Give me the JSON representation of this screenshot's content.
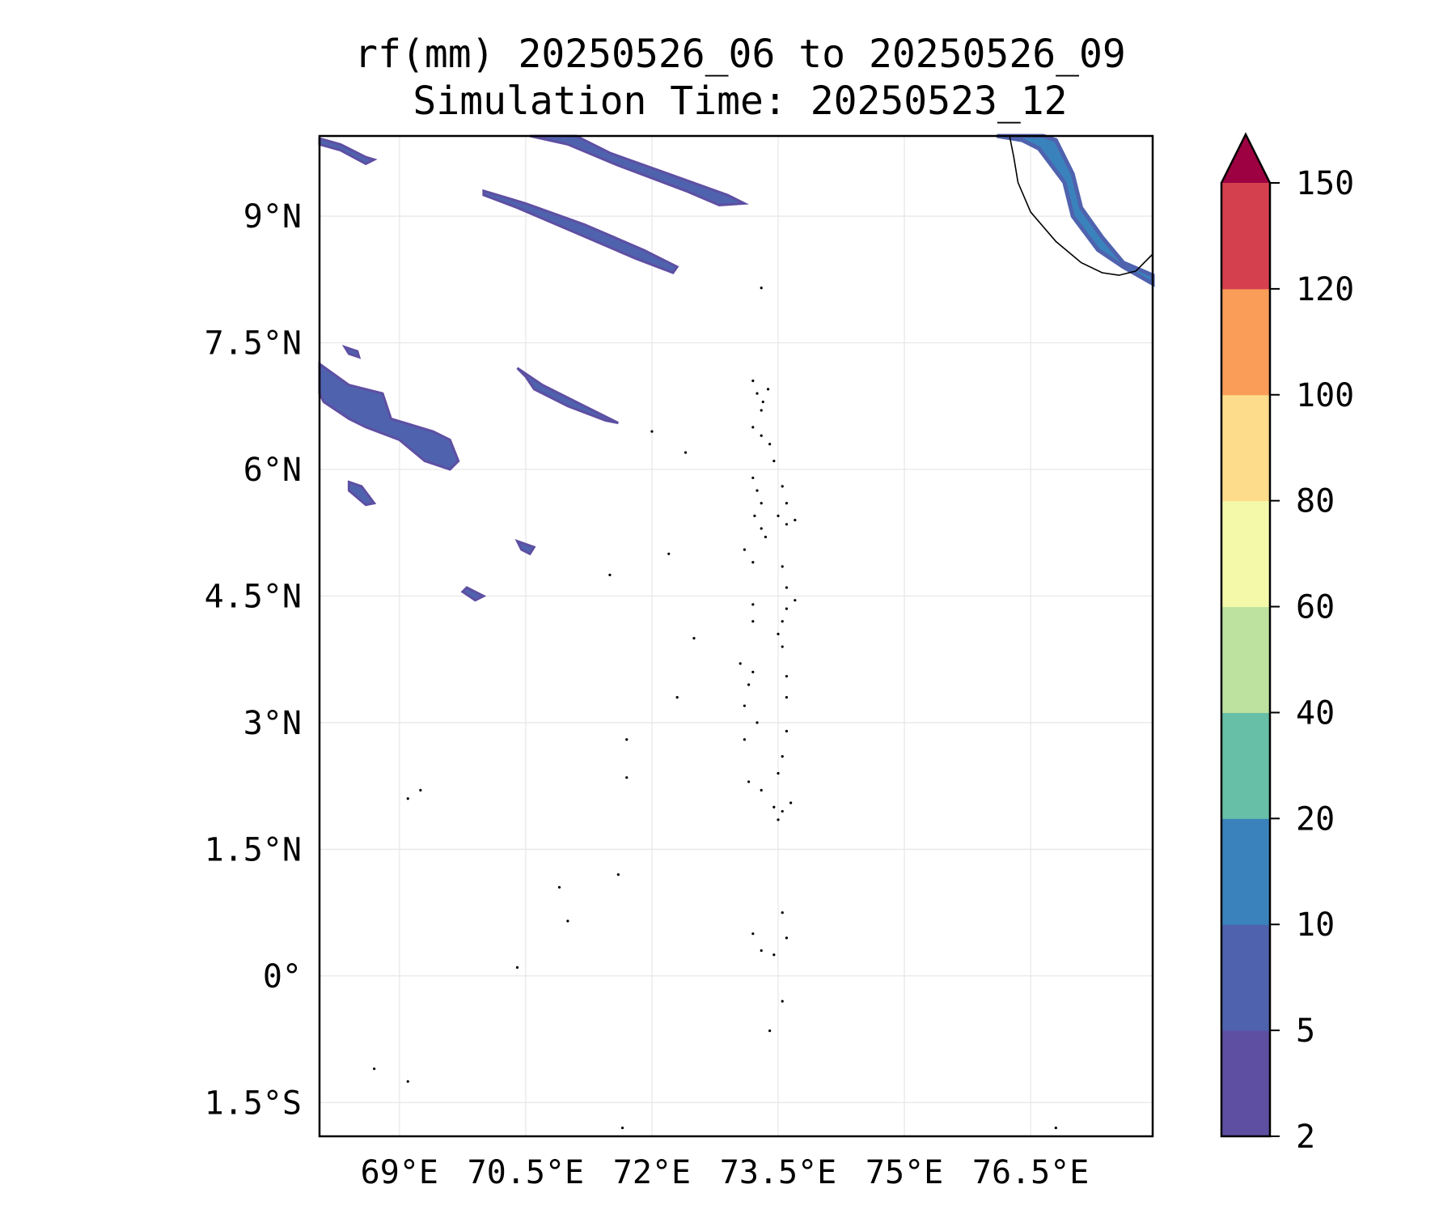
{
  "title_line1": "rf(mm) 20250526_06 to 20250526_09",
  "title_line2": "Simulation Time: 20250523_12",
  "map": {
    "lon_range": [
      68.05,
      77.95
    ],
    "lat_range": [
      -1.9,
      9.95
    ],
    "x_ticks": [
      {
        "value": 69,
        "label": "69°E"
      },
      {
        "value": 70.5,
        "label": "70.5°E"
      },
      {
        "value": 72,
        "label": "72°E"
      },
      {
        "value": 73.5,
        "label": "73.5°E"
      },
      {
        "value": 75,
        "label": "75°E"
      },
      {
        "value": 76.5,
        "label": "76.5°E"
      }
    ],
    "y_ticks": [
      {
        "value": 9,
        "label": "9°N"
      },
      {
        "value": 7.5,
        "label": "7.5°N"
      },
      {
        "value": 6,
        "label": "6°N"
      },
      {
        "value": 4.5,
        "label": "4.5°N"
      },
      {
        "value": 3,
        "label": "3°N"
      },
      {
        "value": 1.5,
        "label": "1.5°N"
      },
      {
        "value": 0,
        "label": "0°"
      },
      {
        "value": -1.5,
        "label": "1.5°S"
      }
    ],
    "gridlines": true,
    "rain_bands": [
      {
        "level": 1,
        "points": [
          [
            68.05,
            9.92
          ],
          [
            68.3,
            9.85
          ],
          [
            68.6,
            9.7
          ],
          [
            68.7,
            9.67
          ],
          [
            68.6,
            9.62
          ],
          [
            68.3,
            9.78
          ],
          [
            68.05,
            9.85
          ]
        ]
      },
      {
        "level": 1,
        "points": [
          [
            70.55,
            9.95
          ],
          [
            71.0,
            9.85
          ],
          [
            71.6,
            9.6
          ],
          [
            72.4,
            9.3
          ],
          [
            72.8,
            9.13
          ],
          [
            73.1,
            9.15
          ],
          [
            72.9,
            9.25
          ],
          [
            72.2,
            9.5
          ],
          [
            71.5,
            9.75
          ],
          [
            71.1,
            9.95
          ]
        ]
      },
      {
        "level": 1,
        "points": [
          [
            70.0,
            9.3
          ],
          [
            70.5,
            9.15
          ],
          [
            71.2,
            8.9
          ],
          [
            71.9,
            8.6
          ],
          [
            72.3,
            8.4
          ],
          [
            72.25,
            8.33
          ],
          [
            71.8,
            8.5
          ],
          [
            71.1,
            8.8
          ],
          [
            70.4,
            9.1
          ],
          [
            70.0,
            9.25
          ]
        ]
      },
      {
        "level": 1,
        "points": [
          [
            68.05,
            7.25
          ],
          [
            68.4,
            7.0
          ],
          [
            68.8,
            6.9
          ],
          [
            68.9,
            6.6
          ],
          [
            69.4,
            6.45
          ],
          [
            69.6,
            6.35
          ],
          [
            69.7,
            6.1
          ],
          [
            69.6,
            6.0
          ],
          [
            69.3,
            6.1
          ],
          [
            69.0,
            6.35
          ],
          [
            68.6,
            6.5
          ],
          [
            68.4,
            6.6
          ],
          [
            68.1,
            6.8
          ],
          [
            68.05,
            6.9
          ]
        ]
      },
      {
        "level": 1,
        "points": [
          [
            68.35,
            7.45
          ],
          [
            68.5,
            7.4
          ],
          [
            68.52,
            7.33
          ],
          [
            68.4,
            7.37
          ]
        ]
      },
      {
        "level": 1,
        "points": [
          [
            70.4,
            7.2
          ],
          [
            70.7,
            7.0
          ],
          [
            71.2,
            6.75
          ],
          [
            71.6,
            6.55
          ],
          [
            71.45,
            6.58
          ],
          [
            71.0,
            6.75
          ],
          [
            70.6,
            6.95
          ],
          [
            70.5,
            7.1
          ]
        ]
      },
      {
        "level": 1,
        "points": [
          [
            68.4,
            5.85
          ],
          [
            68.55,
            5.8
          ],
          [
            68.7,
            5.6
          ],
          [
            68.6,
            5.58
          ],
          [
            68.4,
            5.75
          ]
        ]
      },
      {
        "level": 1,
        "points": [
          [
            70.4,
            5.15
          ],
          [
            70.6,
            5.08
          ],
          [
            70.55,
            5.0
          ],
          [
            70.45,
            5.05
          ]
        ]
      },
      {
        "level": 1,
        "points": [
          [
            69.8,
            4.6
          ],
          [
            70.0,
            4.5
          ],
          [
            69.9,
            4.45
          ],
          [
            69.75,
            4.55
          ]
        ]
      },
      {
        "level": 1,
        "points": [
          [
            76.1,
            9.95
          ],
          [
            76.4,
            9.9
          ],
          [
            76.6,
            9.8
          ],
          [
            76.9,
            9.4
          ],
          [
            77.0,
            9.0
          ],
          [
            77.3,
            8.6
          ],
          [
            77.6,
            8.4
          ],
          [
            77.95,
            8.2
          ],
          [
            77.95,
            8.3
          ],
          [
            77.6,
            8.45
          ],
          [
            77.35,
            8.75
          ],
          [
            77.1,
            9.1
          ],
          [
            77.0,
            9.5
          ],
          [
            76.8,
            9.9
          ],
          [
            76.65,
            9.95
          ]
        ]
      }
    ],
    "coastline": [
      [
        76.25,
        9.95
      ],
      [
        76.3,
        9.7
      ],
      [
        76.35,
        9.4
      ],
      [
        76.5,
        9.05
      ],
      [
        76.8,
        8.7
      ],
      [
        77.1,
        8.45
      ],
      [
        77.35,
        8.33
      ],
      [
        77.55,
        8.3
      ],
      [
        77.75,
        8.35
      ],
      [
        77.95,
        8.55
      ]
    ],
    "islands": [
      [
        73.2,
        7.05
      ],
      [
        73.25,
        6.9
      ],
      [
        73.32,
        6.8
      ],
      [
        73.38,
        6.95
      ],
      [
        73.3,
        6.7
      ],
      [
        73.2,
        6.5
      ],
      [
        73.3,
        6.4
      ],
      [
        73.4,
        6.3
      ],
      [
        73.45,
        6.1
      ],
      [
        73.2,
        5.9
      ],
      [
        73.25,
        5.75
      ],
      [
        73.3,
        5.6
      ],
      [
        73.22,
        5.45
      ],
      [
        73.3,
        5.3
      ],
      [
        73.35,
        5.2
      ],
      [
        73.55,
        5.8
      ],
      [
        73.6,
        5.6
      ],
      [
        73.5,
        5.45
      ],
      [
        73.6,
        5.35
      ],
      [
        73.7,
        5.4
      ],
      [
        73.1,
        5.05
      ],
      [
        73.2,
        4.9
      ],
      [
        73.55,
        4.85
      ],
      [
        73.6,
        4.6
      ],
      [
        73.7,
        4.45
      ],
      [
        73.6,
        4.35
      ],
      [
        73.55,
        4.2
      ],
      [
        73.2,
        4.4
      ],
      [
        73.2,
        4.2
      ],
      [
        73.5,
        4.05
      ],
      [
        73.55,
        3.9
      ],
      [
        73.05,
        3.7
      ],
      [
        73.2,
        3.6
      ],
      [
        73.15,
        3.45
      ],
      [
        73.6,
        3.55
      ],
      [
        73.6,
        3.3
      ],
      [
        73.1,
        3.2
      ],
      [
        73.25,
        3.0
      ],
      [
        73.1,
        2.8
      ],
      [
        73.6,
        2.9
      ],
      [
        73.55,
        2.6
      ],
      [
        73.5,
        2.4
      ],
      [
        73.15,
        2.3
      ],
      [
        73.3,
        2.2
      ],
      [
        73.45,
        2.0
      ],
      [
        73.55,
        1.95
      ],
      [
        73.65,
        2.05
      ],
      [
        73.5,
        1.85
      ],
      [
        73.55,
        0.75
      ],
      [
        73.6,
        0.45
      ],
      [
        73.2,
        0.5
      ],
      [
        73.3,
        0.3
      ],
      [
        73.45,
        0.25
      ],
      [
        73.55,
        -0.3
      ],
      [
        73.4,
        -0.65
      ],
      [
        72.5,
        4.0
      ],
      [
        72.3,
        3.3
      ],
      [
        71.7,
        2.8
      ],
      [
        71.7,
        2.35
      ],
      [
        72.0,
        6.45
      ],
      [
        72.4,
        6.2
      ],
      [
        72.2,
        5.0
      ],
      [
        71.5,
        4.75
      ],
      [
        71.6,
        1.2
      ],
      [
        70.4,
        0.1
      ],
      [
        70.9,
        1.05
      ],
      [
        71.0,
        0.65
      ],
      [
        68.7,
        -1.1
      ],
      [
        69.1,
        -1.25
      ],
      [
        71.65,
        -1.8
      ],
      [
        76.8,
        -1.8
      ],
      [
        73.3,
        8.15
      ],
      [
        69.1,
        2.1
      ],
      [
        69.25,
        2.2
      ]
    ]
  },
  "colorbar": {
    "levels": [
      2,
      5,
      10,
      20,
      40,
      60,
      80,
      100,
      120,
      150
    ],
    "labels": [
      "2",
      "5",
      "10",
      "20",
      "40",
      "60",
      "80",
      "100",
      "120",
      "150"
    ],
    "colors": [
      "#5e4fa2",
      "#4f62ae",
      "#3a82bc",
      "#66bfa6",
      "#bde2a0",
      "#f4f9aa",
      "#fddc8b",
      "#f99d59",
      "#d5404e"
    ],
    "extend_color": "#9e0142"
  }
}
